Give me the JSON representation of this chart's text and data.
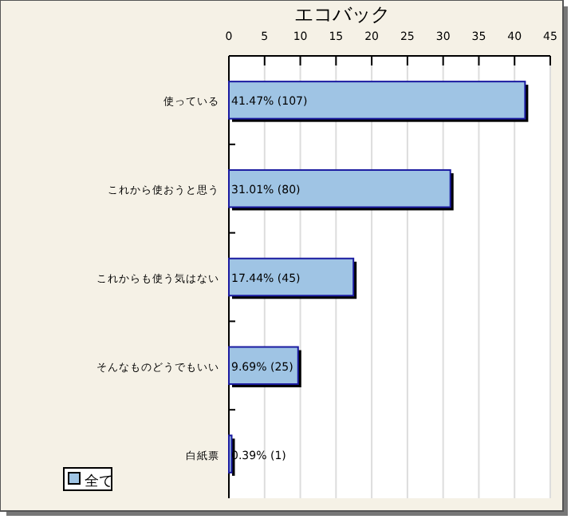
{
  "chart_data": {
    "type": "bar",
    "orientation": "horizontal",
    "title": "エコバック",
    "categories": [
      "使っている",
      "これから使おうと思う",
      "これからも使う気はない",
      "そんなものどうでもいい",
      "白紙票"
    ],
    "series": [
      {
        "name": "全て",
        "color": "#9fc4e4",
        "values": [
          41.47,
          31.01,
          17.44,
          9.69,
          0.39
        ],
        "value_labels": [
          "41.47% (107)",
          "31.01% (80)",
          "17.44% (45)",
          "9.69% (25)",
          "0.39% (1)"
        ]
      }
    ],
    "xlim": [
      0,
      45
    ],
    "xticks": [
      0,
      5,
      10,
      15,
      20,
      25,
      30,
      35,
      40,
      45
    ],
    "grid": "x",
    "legend": "bottom left"
  }
}
